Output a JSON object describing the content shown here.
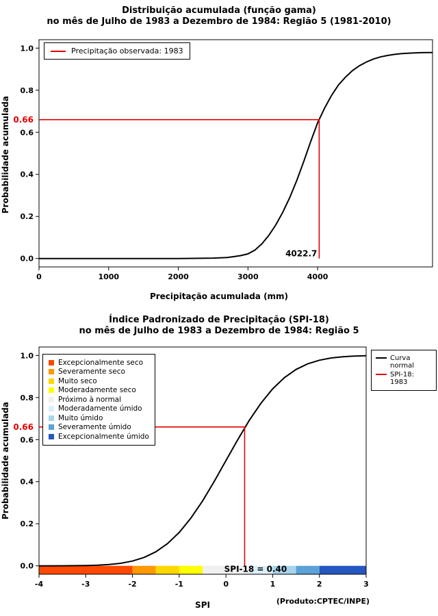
{
  "page": {
    "background": "#ffffff"
  },
  "chart_data": [
    {
      "type": "line",
      "title_line1": "Distribuição acumulada (função gama)",
      "title_line2": "no mês de Julho de 1983 a Dezembro de 1984: Região 5 (1981-2010)",
      "xlabel": "Precipitação acumulada (mm)",
      "ylabel": "Probabilidade acumulada",
      "xlim": [
        0,
        5650
      ],
      "ylim": [
        0,
        1
      ],
      "xticks": [
        "0",
        "1000",
        "2000",
        "3000",
        "4000"
      ],
      "yticks": [
        "0.0",
        "0.2",
        "0.4",
        "0.6",
        "0.8",
        "1.0"
      ],
      "legend_label": "Precipitação observada: 1983",
      "series": [
        {
          "name": "Distribuição gama acumulada",
          "color": "#000000",
          "points": [
            [
              0,
              0
            ],
            [
              500,
              0
            ],
            [
              1000,
              0
            ],
            [
              1500,
              0
            ],
            [
              2000,
              0
            ],
            [
              2300,
              0.001
            ],
            [
              2500,
              0.002
            ],
            [
              2700,
              0.005
            ],
            [
              2800,
              0.009
            ],
            [
              2900,
              0.014
            ],
            [
              3000,
              0.022
            ],
            [
              3100,
              0.04
            ],
            [
              3200,
              0.07
            ],
            [
              3300,
              0.11
            ],
            [
              3400,
              0.16
            ],
            [
              3500,
              0.22
            ],
            [
              3600,
              0.29
            ],
            [
              3700,
              0.37
            ],
            [
              3800,
              0.46
            ],
            [
              3900,
              0.555
            ],
            [
              4000,
              0.645
            ],
            [
              4100,
              0.715
            ],
            [
              4200,
              0.775
            ],
            [
              4300,
              0.825
            ],
            [
              4400,
              0.862
            ],
            [
              4500,
              0.893
            ],
            [
              4600,
              0.916
            ],
            [
              4700,
              0.934
            ],
            [
              4800,
              0.948
            ],
            [
              4900,
              0.958
            ],
            [
              5000,
              0.965
            ],
            [
              5100,
              0.97
            ],
            [
              5200,
              0.9735
            ],
            [
              5300,
              0.976
            ],
            [
              5400,
              0.9775
            ],
            [
              5500,
              0.9785
            ],
            [
              5650,
              0.979
            ]
          ]
        }
      ],
      "marker": {
        "x": 4022.7,
        "y": 0.66,
        "x_label": "4022.7",
        "y_label": "0.66",
        "color": "#e60000"
      }
    },
    {
      "type": "line",
      "title_line1": "Índice Padronizado de Precipitação (SPI-18)",
      "title_line2": "no mês de Julho de 1983 a Dezembro de 1984: Região 5",
      "xlabel": "SPI",
      "ylabel": "Probabilidade acumulada",
      "xlim": [
        -4,
        3
      ],
      "ylim": [
        0,
        1
      ],
      "xticks": [
        "-4",
        "-3",
        "-2",
        "-1",
        "0",
        "1",
        "2",
        "3"
      ],
      "yticks": [
        "0.0",
        "0.2",
        "0.4",
        "0.6",
        "0.8",
        "1.0"
      ],
      "legend_entries": [
        {
          "label": "Curva normal",
          "color": "#000000"
        },
        {
          "label": "SPI-18: 1983",
          "color": "#e60000"
        }
      ],
      "series": [
        {
          "name": "Curva normal",
          "color": "#000000",
          "points": [
            [
              -4,
              3e-05
            ],
            [
              -3.5,
              0.0002
            ],
            [
              -3,
              0.0013
            ],
            [
              -2.75,
              0.003
            ],
            [
              -2.5,
              0.0062
            ],
            [
              -2.25,
              0.0122
            ],
            [
              -2,
              0.0228
            ],
            [
              -1.75,
              0.0401
            ],
            [
              -1.5,
              0.0668
            ],
            [
              -1.25,
              0.1056
            ],
            [
              -1,
              0.1587
            ],
            [
              -0.75,
              0.2266
            ],
            [
              -0.5,
              0.3085
            ],
            [
              -0.25,
              0.4013
            ],
            [
              0,
              0.5
            ],
            [
              0.25,
              0.5987
            ],
            [
              0.5,
              0.6915
            ],
            [
              0.75,
              0.7734
            ],
            [
              1,
              0.8413
            ],
            [
              1.25,
              0.8944
            ],
            [
              1.5,
              0.9332
            ],
            [
              1.75,
              0.9599
            ],
            [
              2,
              0.9772
            ],
            [
              2.25,
              0.9878
            ],
            [
              2.5,
              0.9938
            ],
            [
              2.75,
              0.997
            ],
            [
              3,
              0.9987
            ]
          ]
        }
      ],
      "marker": {
        "x": 0.4,
        "y": 0.66,
        "y_label": "0.66",
        "caption": "SPI-18 = 0.40",
        "color": "#e60000"
      },
      "categories": [
        {
          "label": "Excepcionalmente seco",
          "from": -4,
          "to": -2,
          "color": "#ff4800"
        },
        {
          "label": "Severamente seco",
          "from": -2,
          "to": -1.5,
          "color": "#ff9900"
        },
        {
          "label": "Muito seco",
          "from": -1.5,
          "to": -1,
          "color": "#ffd700"
        },
        {
          "label": "Moderadamente seco",
          "from": -1,
          "to": -0.5,
          "color": "#ffff00"
        },
        {
          "label": "Próximo à normal",
          "from": -0.5,
          "to": 0.5,
          "color": "#f0f0f0"
        },
        {
          "label": "Moderadamente úmido",
          "from": 0.5,
          "to": 1,
          "color": "#dbeef9"
        },
        {
          "label": "Muito úmido",
          "from": 1,
          "to": 1.5,
          "color": "#a8d4ec"
        },
        {
          "label": "Severamente úmido",
          "from": 1.5,
          "to": 2,
          "color": "#5aa2d8"
        },
        {
          "label": "Excepcionalmente úmido",
          "from": 2,
          "to": 3,
          "color": "#2457c0"
        }
      ],
      "source_note": "(Produto:CPTEC/INPE)"
    }
  ]
}
